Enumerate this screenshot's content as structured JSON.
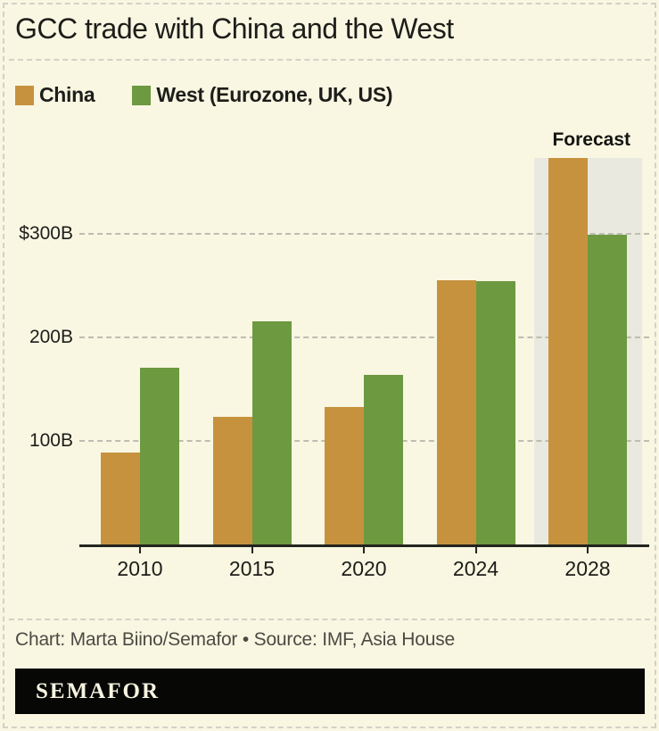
{
  "header": {
    "title": "GCC trade with China and the West"
  },
  "legend": {
    "items": [
      {
        "label": "China",
        "color": "#c7923e"
      },
      {
        "label": "West (Eurozone, UK, US)",
        "color": "#6d9940"
      }
    ]
  },
  "chart_data": {
    "type": "bar",
    "title": "GCC trade with China and the West",
    "unit": "USD billions",
    "categories": [
      "2010",
      "2015",
      "2020",
      "2024",
      "2028"
    ],
    "series": [
      {
        "name": "China",
        "color": "#c7923e",
        "values": [
          90,
          124,
          134,
          256,
          374
        ]
      },
      {
        "name": "West (Eurozone, UK, US)",
        "color": "#6d9940",
        "values": [
          172,
          216,
          165,
          255,
          300
        ]
      }
    ],
    "yticks": [
      {
        "value": 100,
        "label": "100B"
      },
      {
        "value": 200,
        "label": "200B"
      },
      {
        "value": 300,
        "label": "$300B"
      }
    ],
    "ylim": [
      0,
      385
    ],
    "grid": "horizontal-dashed",
    "legend_position": "top-left",
    "forecast": {
      "label": "Forecast",
      "category": "2028",
      "band_color": "#eae9df"
    }
  },
  "footer": {
    "credit": "Chart: Marta Biino/Semafor • Source: IMF, Asia House",
    "logo_text": "SEMAFOR"
  },
  "colors": {
    "background": "#f9f7e2",
    "china": "#c7923e",
    "west": "#6d9940",
    "forecast_band": "#eae9df",
    "gridline": "#bdbdb2",
    "dashed_border": "#d2d2c7",
    "axis": "#24241f",
    "text": "#1d1d1a",
    "credit_text": "#4b4b43",
    "logo_background": "#070706",
    "logo_text_color": "#f7f4e1"
  }
}
